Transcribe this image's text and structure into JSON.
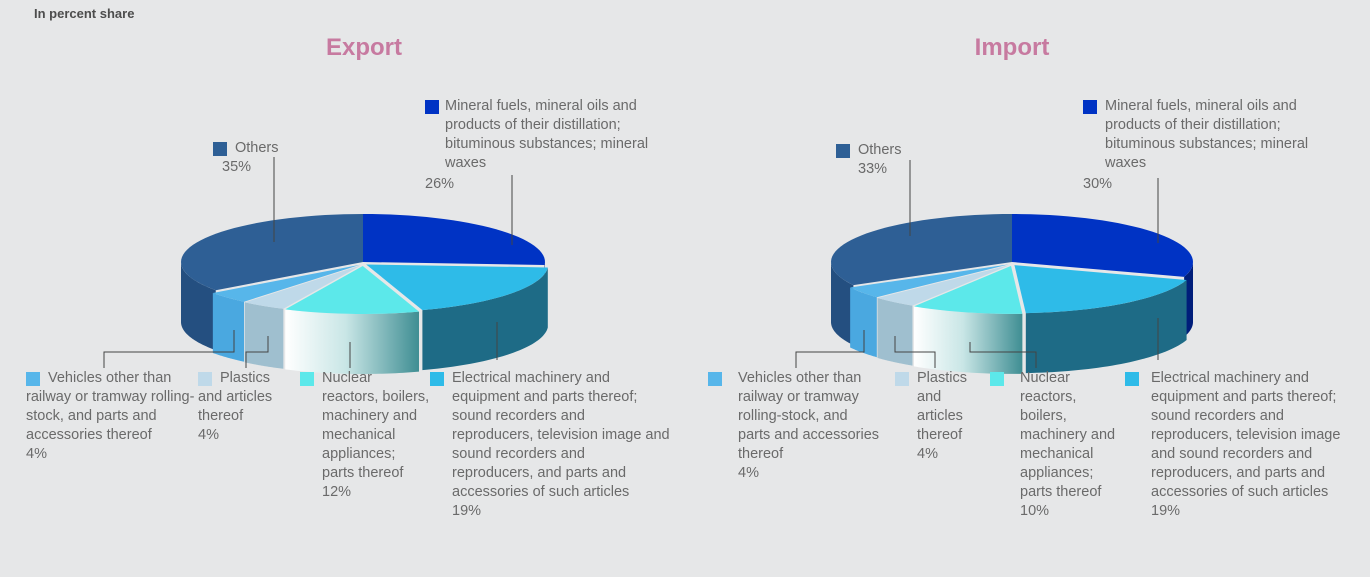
{
  "header": {
    "unit_label": "In percent share"
  },
  "colors": {
    "background": "#e6e7e8",
    "title": "#c77aa0",
    "text": "#6a6a6a",
    "leader": "#444444"
  },
  "chart_data": [
    {
      "type": "pie",
      "title": "Export",
      "style": "3d-exploded",
      "slices": [
        {
          "label": "Mineral fuels, mineral oils and products of their distillation; bituminous substances; mineral waxes",
          "value": 26,
          "value_text": "26%",
          "color": "#0033c4",
          "side_color": "#001e7a"
        },
        {
          "label": "Electrical machinery and equipment and parts thereof; sound recorders and reproducers, television image and sound recorders and reproducers, and parts and accessories of such articles",
          "value": 19,
          "value_text": "19%",
          "color": "#2ebbe8",
          "side_color": "#1e6b86"
        },
        {
          "label": "Nuclear reactors, boilers, machinery and mechanical appliances; parts thereof",
          "value": 12,
          "value_text": "12%",
          "color": "#5ce8ea",
          "side_color": "gradient"
        },
        {
          "label": "Plastics and articles thereof",
          "value": 4,
          "value_text": "4%",
          "color": "#bfd9e9",
          "side_color": "#9fbfcf"
        },
        {
          "label": "Vehicles other than railway or tramway rolling-stock, and parts and accessories thereof",
          "value": 4,
          "value_text": "4%",
          "color": "#57b6ea",
          "side_color": "#4aa8e0"
        },
        {
          "label": "Others",
          "value": 35,
          "value_text": "35%",
          "color": "#2e5f95",
          "side_color": "#244f80"
        }
      ]
    },
    {
      "type": "pie",
      "title": "Import",
      "style": "3d-exploded",
      "slices": [
        {
          "label": "Mineral fuels, mineral oils and products of their distillation; bituminous substances; mineral waxes",
          "value": 30,
          "value_text": "30%",
          "color": "#0033c4",
          "side_color": "#001e7a"
        },
        {
          "label": "Electrical machinery and equipment and parts thereof; sound recorders and reproducers, television image and sound recorders and reproducers, and parts and accessories of such articles",
          "value": 19,
          "value_text": "19%",
          "color": "#2ebbe8",
          "side_color": "#1e6b86"
        },
        {
          "label": "Nuclear reactors, boilers, machinery and mechanical appliances; parts thereof",
          "value": 10,
          "value_text": "10%",
          "color": "#5ce8ea",
          "side_color": "gradient"
        },
        {
          "label": "Plastics and articles thereof",
          "value": 4,
          "value_text": "4%",
          "color": "#bfd9e9",
          "side_color": "#9fbfcf"
        },
        {
          "label": "Vehicles other than railway or tramway rolling-stock, and parts and accessories thereof",
          "value": 4,
          "value_text": "4%",
          "color": "#57b6ea",
          "side_color": "#4aa8e0"
        },
        {
          "label": "Others",
          "value": 33,
          "value_text": "33%",
          "color": "#2e5f95",
          "side_color": "#244f80"
        }
      ]
    }
  ]
}
